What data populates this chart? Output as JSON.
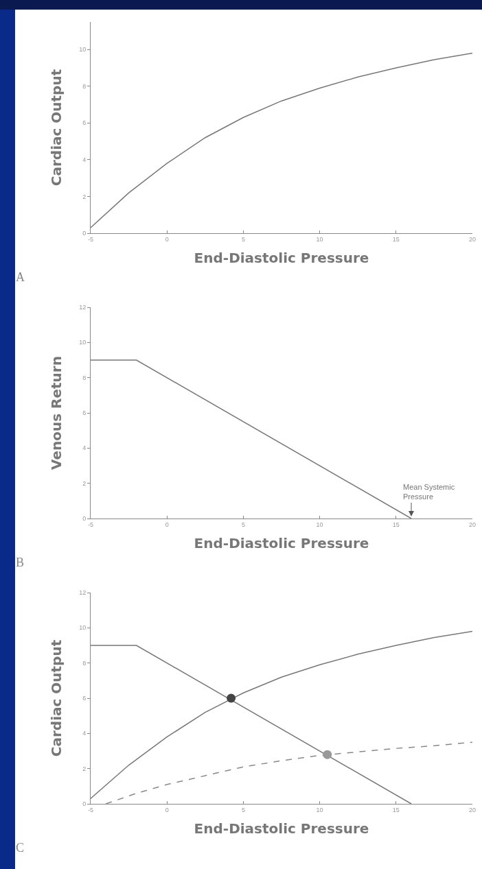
{
  "chart_data": [
    {
      "type": "line",
      "xlabel": "End-Diastolic Pressure",
      "ylabel": "Cardiac Output",
      "xlim": [
        -5,
        20
      ],
      "xticks": [
        -5,
        0,
        5,
        10,
        15,
        20
      ],
      "ylim": [
        0,
        11.5
      ],
      "yticks": [
        0,
        2,
        4,
        6,
        8,
        10
      ],
      "grid": false,
      "annotations": [
        "A"
      ],
      "series": [
        {
          "color": "#777777",
          "line_style": "solid",
          "marker": "none",
          "x": [
            -5,
            -2.5,
            0,
            2.5,
            5,
            7.5,
            10,
            12.5,
            15,
            17.5,
            20
          ],
          "values": [
            0.3,
            2.2,
            3.8,
            5.2,
            6.3,
            7.2,
            7.9,
            8.5,
            9.0,
            9.45,
            9.8
          ]
        }
      ]
    },
    {
      "type": "line",
      "xlabel": "End-Diastolic Pressure",
      "ylabel": "Venous Return",
      "xlim": [
        -5,
        20
      ],
      "xticks": [
        -5,
        0,
        5,
        10,
        15,
        20
      ],
      "ylim": [
        0,
        12
      ],
      "yticks": [
        0,
        2,
        4,
        6,
        8,
        10,
        12
      ],
      "grid": false,
      "annotations": [
        "B",
        {
          "text": "Mean Systemic Pressure",
          "x": 16,
          "y": 0
        }
      ],
      "series": [
        {
          "color": "#777777",
          "line_style": "solid",
          "marker": "none",
          "x": [
            -5,
            -2,
            16
          ],
          "values": [
            9,
            9,
            0
          ]
        }
      ]
    },
    {
      "type": "line",
      "xlabel": "End-Diastolic Pressure",
      "ylabel": "Cardiac Output",
      "xlim": [
        -5,
        20
      ],
      "xticks": [
        -5,
        0,
        5,
        10,
        15,
        20
      ],
      "ylim": [
        0,
        12
      ],
      "yticks": [
        0,
        2,
        4,
        6,
        8,
        10,
        12
      ],
      "grid": false,
      "annotations": [
        "C"
      ],
      "series": [
        {
          "color": "#777777",
          "line_style": "solid",
          "marker": "none",
          "x": [
            -5,
            -2.5,
            0,
            2.5,
            5,
            7.5,
            10,
            12.5,
            15,
            17.5,
            20
          ],
          "values": [
            0.3,
            2.2,
            3.8,
            5.2,
            6.3,
            7.2,
            7.9,
            8.5,
            9.0,
            9.45,
            9.8
          ]
        },
        {
          "color": "#777777",
          "line_style": "solid",
          "marker": "none",
          "x": [
            -5,
            -2,
            16
          ],
          "values": [
            9,
            9,
            0
          ]
        },
        {
          "color": "#888888",
          "line_style": "dashed",
          "marker": "none",
          "x": [
            -4,
            -2,
            0,
            2.5,
            5,
            7.5,
            10,
            12.5,
            15,
            17.5,
            20
          ],
          "values": [
            0,
            0.6,
            1.1,
            1.6,
            2.1,
            2.45,
            2.75,
            2.95,
            3.15,
            3.3,
            3.5
          ]
        },
        {
          "type": "scatter",
          "marker": "circle",
          "colors": [
            "#444444",
            "#999999"
          ],
          "x": [
            4.2,
            10.5
          ],
          "values": [
            6,
            2.8
          ]
        }
      ]
    }
  ]
}
